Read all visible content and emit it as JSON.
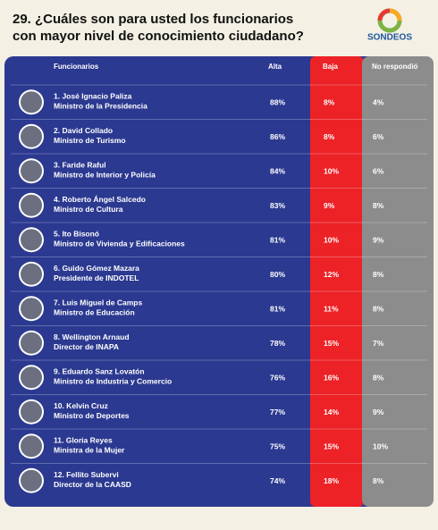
{
  "header": {
    "title_line1": "29. ¿Cuáles son para usted los funcionarios",
    "title_line2": "con mayor nivel de conocimiento ciudadano?",
    "logo": "SONDEOS"
  },
  "table": {
    "columns": [
      "Funcionarios",
      "Alta",
      "Baja",
      "No respondió"
    ],
    "rows": [
      [
        "1. José Ignacio Paliza",
        "Ministro de la Presidencia",
        "88%",
        "8%",
        "4%"
      ],
      [
        "2. David Collado",
        "Ministro de Turismo",
        "86%",
        "8%",
        "6%"
      ],
      [
        "3. Faride Raful",
        "Ministro de Interior y Policía",
        "84%",
        "10%",
        "6%"
      ],
      [
        "4. Roberto Ángel Salcedo",
        "Ministro de Cultura",
        "83%",
        "9%",
        "8%"
      ],
      [
        "5. Ito Bisonó",
        "Ministro de Vivienda y Edificaciones",
        "81%",
        "10%",
        "9%"
      ],
      [
        "6. Guido Gómez Mazara",
        "Presidente de INDOTEL",
        "80%",
        "12%",
        "8%"
      ],
      [
        "7. Luis Miguel de Camps",
        "Ministro de Educación",
        "81%",
        "11%",
        "8%"
      ],
      [
        "8. Wellington Arnaud",
        "Director de INAPA",
        "78%",
        "15%",
        "7%"
      ],
      [
        "9. Eduardo Sanz Lovatón",
        "Ministro de Industria y Comercio",
        "76%",
        "16%",
        "8%"
      ],
      [
        "10. Kelvin Cruz",
        "Ministro de Deportes",
        "77%",
        "14%",
        "9%"
      ],
      [
        "11. Gloria Reyes",
        "Ministra de la Mujer",
        "75%",
        "15%",
        "10%"
      ],
      [
        "12. Fellito Subervi",
        "Director de la CAASD",
        "74%",
        "18%",
        "8%"
      ]
    ]
  }
}
